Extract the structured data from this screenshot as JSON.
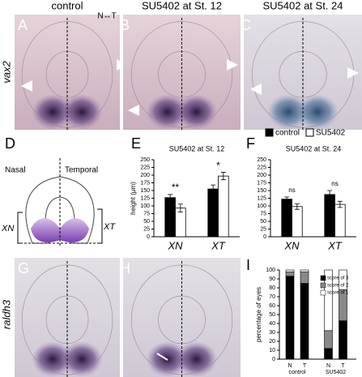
{
  "figure": {
    "photos": [
      {
        "letter": "A",
        "title": "control"
      },
      {
        "letter": "B",
        "title": "SU5402 at St. 12"
      },
      {
        "letter": "C",
        "title": "SU5402 at St. 24"
      },
      {
        "letter": "G"
      },
      {
        "letter": "H"
      }
    ],
    "orientation": "N↔T",
    "row_labels": [
      "vax2",
      "raldh3"
    ],
    "diagram": {
      "letter": "D",
      "nasal": "Nasal",
      "temporal": "Temporal",
      "xn": "XN",
      "xt": "XT"
    },
    "chart_letters": [
      "E",
      "F",
      "I"
    ]
  },
  "chart_data": [
    {
      "type": "bar",
      "title": "SU5402 at St. 12",
      "y_label": "height (μm)",
      "categories": [
        "XN",
        "XT"
      ],
      "series": [
        {
          "name": "control",
          "color": "#000000",
          "values": [
            127,
            155
          ],
          "errors": [
            10,
            13
          ]
        },
        {
          "name": "SU5402",
          "color": "#ffffff",
          "values": [
            93,
            197
          ],
          "errors": [
            13,
            12
          ]
        }
      ],
      "annotations": [
        "**",
        "*"
      ],
      "ylim": [
        0,
        250
      ],
      "yticks": [
        0,
        25,
        50,
        75,
        100,
        125,
        150,
        175,
        200,
        225,
        250
      ]
    },
    {
      "type": "bar",
      "title": "SU5402 at St. 24",
      "categories": [
        "XN",
        "XT"
      ],
      "series": [
        {
          "color": "#000000",
          "values": [
            122,
            137
          ],
          "errors": [
            7,
            13
          ]
        },
        {
          "color": "#ffffff",
          "values": [
            98,
            105
          ],
          "errors": [
            9,
            10
          ]
        }
      ],
      "annotations": [
        "ns",
        "ns"
      ],
      "ylim": [
        0,
        250
      ],
      "yticks": [
        0,
        25,
        50,
        75,
        100,
        125,
        150,
        175,
        200,
        225,
        250
      ]
    },
    {
      "type": "stacked_bar",
      "y_label": "percentage of eyes",
      "categories": [
        "N",
        "T",
        "N",
        "T"
      ],
      "groups": [
        "control",
        "SU5402"
      ],
      "series": [
        {
          "name": "score of 3",
          "color": "#000000",
          "values": [
            93,
            85,
            12,
            43
          ]
        },
        {
          "name": "score of 2",
          "color": "#888888",
          "values": [
            5,
            13,
            20,
            35
          ]
        },
        {
          "name": "score of 1",
          "color": "#ffffff",
          "values": [
            2,
            2,
            68,
            22
          ]
        }
      ],
      "ylim": [
        0,
        100
      ],
      "yticks": [
        0,
        10,
        20,
        30,
        40,
        50,
        60,
        70,
        80,
        90,
        100
      ]
    }
  ]
}
